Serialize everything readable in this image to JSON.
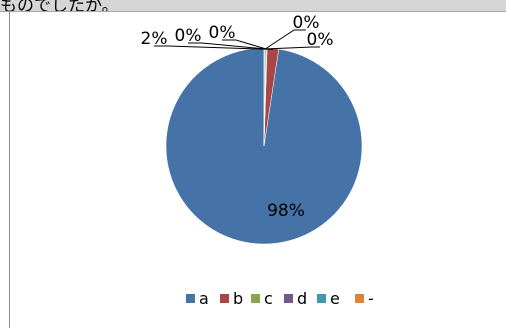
{
  "header": {
    "truncated_title": "ものでしたか。"
  },
  "chart_data": {
    "type": "pie",
    "categories": [
      "a",
      "b",
      "c",
      "d",
      "e",
      "-"
    ],
    "values": [
      97.6,
      1.9,
      0.1,
      0.1,
      0.2,
      0.1
    ],
    "data_labels": [
      "98%",
      "2%",
      "0%",
      "0%",
      "0%",
      "0%"
    ],
    "legend_position": "bottom",
    "colors": [
      "#4572a7",
      "#aa4643",
      "#89a54e",
      "#71588f",
      "#4198af",
      "#db843d"
    ]
  }
}
